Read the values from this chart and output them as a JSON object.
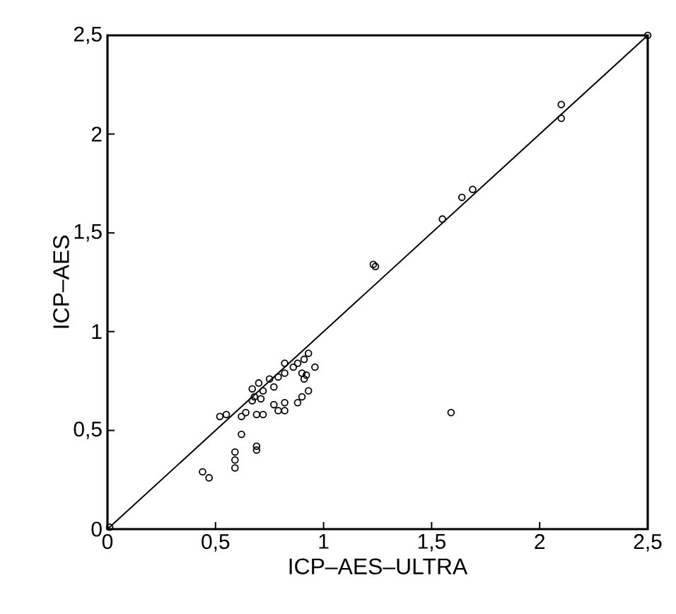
{
  "chart_data": {
    "type": "scatter",
    "xlabel": "ICP–AES–ULTRA",
    "ylabel": "ICP–AES",
    "xlim": [
      0,
      2.5
    ],
    "ylim": [
      0,
      2.5
    ],
    "xticks": [
      0,
      {
        "value": 0.5,
        "label": "0,5"
      },
      1,
      {
        "value": 1.5,
        "label": "1,5"
      },
      2,
      {
        "value": 2.5,
        "label": "2,5"
      }
    ],
    "yticks": [
      0,
      {
        "value": 0.5,
        "label": "0,5"
      },
      1,
      {
        "value": 1.5,
        "label": "1,5"
      },
      2,
      {
        "value": 2.5,
        "label": "2,5"
      }
    ],
    "grid": false,
    "marker": "circle",
    "series": [
      {
        "color": "#000000",
        "x": [
          2.5,
          2.1,
          2.1,
          1.69,
          1.64,
          1.55,
          1.23,
          1.24,
          1.59,
          0.44,
          0.47,
          0.59,
          0.59,
          0.59,
          0.69,
          0.69,
          0.62,
          0.52,
          0.55,
          0.62,
          0.64,
          0.69,
          0.72,
          0.79,
          0.82,
          0.77,
          0.82,
          0.88,
          0.93,
          0.9,
          0.96,
          0.92,
          0.91,
          0.67,
          0.68,
          0.7,
          0.72,
          0.77,
          0.79,
          0.82,
          0.82,
          0.86,
          0.88,
          0.91,
          0.93,
          0.9,
          0.75,
          0.71,
          0.67,
          0.01
        ],
        "values": [
          2.5,
          2.15,
          2.08,
          1.72,
          1.68,
          1.57,
          1.34,
          1.33,
          0.59,
          0.29,
          0.26,
          0.39,
          0.35,
          0.31,
          0.42,
          0.4,
          0.48,
          0.57,
          0.58,
          0.57,
          0.59,
          0.58,
          0.58,
          0.6,
          0.6,
          0.63,
          0.64,
          0.64,
          0.7,
          0.67,
          0.82,
          0.78,
          0.76,
          0.71,
          0.67,
          0.74,
          0.7,
          0.72,
          0.77,
          0.79,
          0.84,
          0.82,
          0.84,
          0.86,
          0.89,
          0.79,
          0.76,
          0.66,
          0.65,
          0.01
        ]
      },
      {
        "type": "line",
        "color": "#000000",
        "marker": "none",
        "x": [
          0,
          2.5
        ],
        "values": [
          0,
          2.5
        ]
      }
    ]
  }
}
